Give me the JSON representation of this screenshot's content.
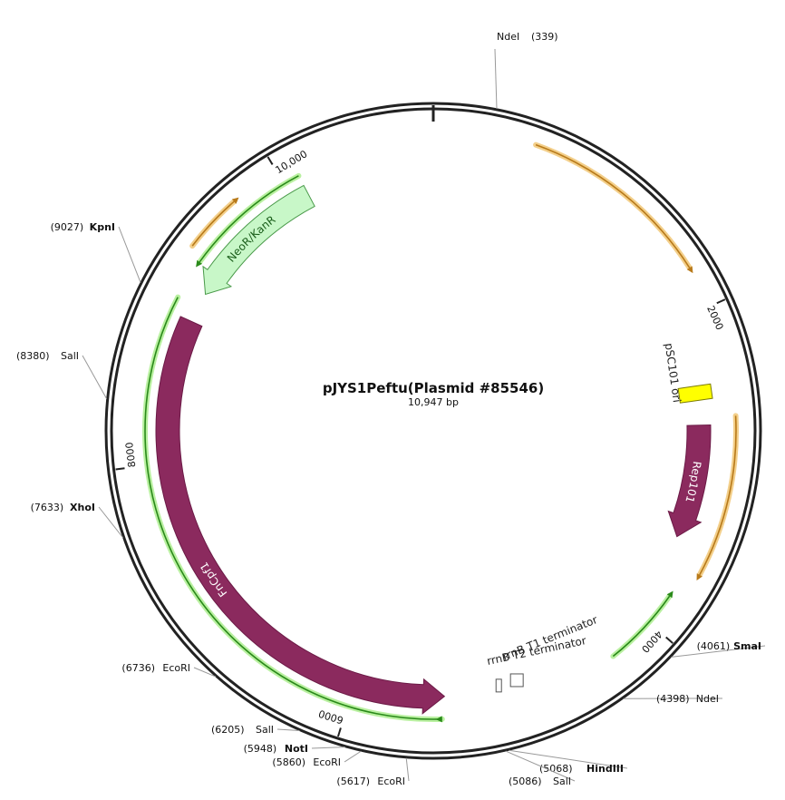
{
  "plasmid": {
    "name": "pJYS1Peftu(Plasmid #85546)",
    "size_label": "10,947 bp",
    "length": 10947
  },
  "ticks": [
    {
      "pos": 2000,
      "label": "2000"
    },
    {
      "pos": 4000,
      "label": "4000"
    },
    {
      "pos": 6000,
      "label": "6000"
    },
    {
      "pos": 8000,
      "label": "8000"
    },
    {
      "pos": 10000,
      "label": "10,000"
    }
  ],
  "sites": [
    {
      "name": "NdeI",
      "pos": 339,
      "pos_label": "(339)",
      "bold": false
    },
    {
      "name": "SmaI",
      "pos": 4061,
      "pos_label": "(4061)",
      "bold": true
    },
    {
      "name": "NdeI",
      "pos": 4398,
      "pos_label": "(4398)",
      "bold": false
    },
    {
      "name": "HindIII",
      "pos": 5068,
      "pos_label": "(5068)",
      "bold": true
    },
    {
      "name": "SalI",
      "pos": 5086,
      "pos_label": "(5086)",
      "bold": false
    },
    {
      "name": "EcoRI",
      "pos": 5617,
      "pos_label": "(5617)",
      "bold": false
    },
    {
      "name": "EcoRI",
      "pos": 5860,
      "pos_label": "(5860)",
      "bold": false
    },
    {
      "name": "NotI",
      "pos": 5948,
      "pos_label": "(5948)",
      "bold": true
    },
    {
      "name": "SalI",
      "pos": 6205,
      "pos_label": "(6205)",
      "bold": false
    },
    {
      "name": "EcoRI",
      "pos": 6736,
      "pos_label": "(6736)",
      "bold": false
    },
    {
      "name": "XhoI",
      "pos": 7633,
      "pos_label": "(7633)",
      "bold": true
    },
    {
      "name": "SalI",
      "pos": 8380,
      "pos_label": "(8380)",
      "bold": false
    },
    {
      "name": "KpnI",
      "pos": 9027,
      "pos_label": "(9027)",
      "bold": true
    }
  ],
  "features": [
    {
      "name": "NeoR/KanR",
      "kind": "cds",
      "color": "#c8f7c8",
      "stroke": "#4a9a4a",
      "text_color": "#1a5e1a",
      "start": 10100,
      "end": 9150,
      "direction": "reverse"
    },
    {
      "name": "FnCpf1",
      "kind": "cds",
      "color": "#8b2a5e",
      "stroke": "#6b1a46",
      "text_color": "#ffffff",
      "start": 8950,
      "end": 5400,
      "direction": "reverse"
    },
    {
      "name": "Rep101",
      "kind": "cds",
      "color": "#8b2a5e",
      "stroke": "#6b1a46",
      "text_color": "#ffffff",
      "start": 2700,
      "end": 3450,
      "direction": "forward"
    },
    {
      "name": "pSC101 ori",
      "kind": "ori",
      "color": "#ffff00",
      "stroke": "#7a7a00",
      "text_color": "#222222",
      "start": 2380,
      "end": 2600,
      "direction": "none"
    },
    {
      "name": "rrnB T1 terminator",
      "kind": "terminator",
      "color": "#ffffff",
      "stroke": "#555555",
      "text_color": "#222222",
      "start": 4860,
      "end": 4960,
      "direction": "none"
    },
    {
      "name": "rrnB T2 terminator",
      "kind": "terminator",
      "color": "#ffffff",
      "stroke": "#555555",
      "text_color": "#222222",
      "start": 5020,
      "end": 5050,
      "direction": "none"
    }
  ],
  "primer_arcs": [
    {
      "color": "#b87a1a",
      "halo": "#f3cf8a",
      "start": 600,
      "end": 1750,
      "direction": "forward",
      "radius": 335
    },
    {
      "color": "#b87a1a",
      "halo": "#f3cf8a",
      "start": 2650,
      "end": 3600,
      "direction": "forward",
      "radius": 334
    },
    {
      "color": "#b87a1a",
      "halo": "#f3cf8a",
      "start": 9350,
      "end": 9700,
      "direction": "forward",
      "radius": 335
    },
    {
      "color": "#2a8a1a",
      "halo": "#b9f0a0",
      "start": 4300,
      "end": 3800,
      "direction": "reverse",
      "radius": 318
    },
    {
      "color": "#2a8a1a",
      "halo": "#b9f0a0",
      "start": 10100,
      "end": 9300,
      "direction": "reverse",
      "radius": 318
    },
    {
      "color": "#2a8a1a",
      "halo": "#b9f0a0",
      "start": 9050,
      "end": 5420,
      "direction": "forward",
      "radius": 318
    }
  ]
}
